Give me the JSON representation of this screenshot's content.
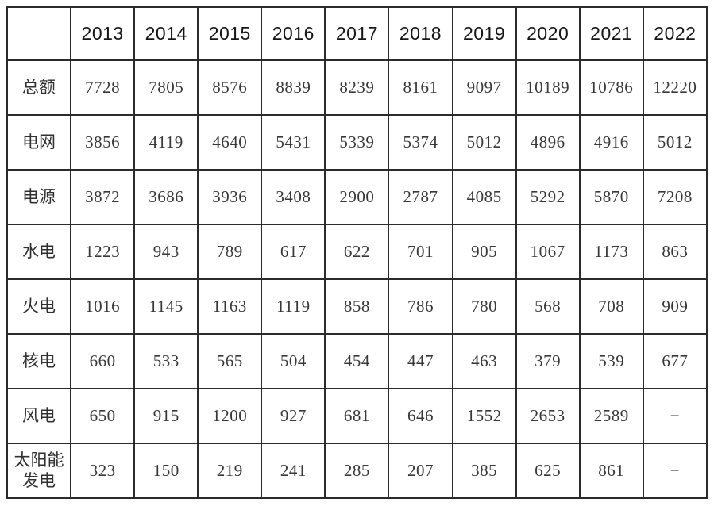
{
  "accent_colors": {
    "border": "#2b2b2b",
    "header_text": "#161616",
    "body_text": "#383838",
    "background": "#ffffff"
  },
  "table": {
    "corner_label": "",
    "columns": [
      "2013",
      "2014",
      "2015",
      "2016",
      "2017",
      "2018",
      "2019",
      "2020",
      "2021",
      "2022"
    ],
    "rows": [
      {
        "label": "总额",
        "values": [
          "7728",
          "7805",
          "8576",
          "8839",
          "8239",
          "8161",
          "9097",
          "10189",
          "10786",
          "12220"
        ]
      },
      {
        "label": "电网",
        "values": [
          "3856",
          "4119",
          "4640",
          "5431",
          "5339",
          "5374",
          "5012",
          "4896",
          "4916",
          "5012"
        ]
      },
      {
        "label": "电源",
        "values": [
          "3872",
          "3686",
          "3936",
          "3408",
          "2900",
          "2787",
          "4085",
          "5292",
          "5870",
          "7208"
        ]
      },
      {
        "label": "水电",
        "values": [
          "1223",
          "943",
          "789",
          "617",
          "622",
          "701",
          "905",
          "1067",
          "1173",
          "863"
        ]
      },
      {
        "label": "火电",
        "values": [
          "1016",
          "1145",
          "1163",
          "1119",
          "858",
          "786",
          "780",
          "568",
          "708",
          "909"
        ]
      },
      {
        "label": "核电",
        "values": [
          "660",
          "533",
          "565",
          "504",
          "454",
          "447",
          "463",
          "379",
          "539",
          "677"
        ]
      },
      {
        "label": "风电",
        "values": [
          "650",
          "915",
          "1200",
          "927",
          "681",
          "646",
          "1552",
          "2653",
          "2589",
          "−"
        ]
      },
      {
        "label": "太阳能发电",
        "values": [
          "323",
          "150",
          "219",
          "241",
          "285",
          "207",
          "385",
          "625",
          "861",
          "−"
        ]
      }
    ]
  },
  "chart_data": {
    "type": "table",
    "title": "",
    "categories": [
      "2013",
      "2014",
      "2015",
      "2016",
      "2017",
      "2018",
      "2019",
      "2020",
      "2021",
      "2022"
    ],
    "series": [
      {
        "name": "总额",
        "values": [
          7728,
          7805,
          8576,
          8839,
          8239,
          8161,
          9097,
          10189,
          10786,
          12220
        ]
      },
      {
        "name": "电网",
        "values": [
          3856,
          4119,
          4640,
          5431,
          5339,
          5374,
          5012,
          4896,
          4916,
          5012
        ]
      },
      {
        "name": "电源",
        "values": [
          3872,
          3686,
          3936,
          3408,
          2900,
          2787,
          4085,
          5292,
          5870,
          7208
        ]
      },
      {
        "name": "水电",
        "values": [
          1223,
          943,
          789,
          617,
          622,
          701,
          905,
          1067,
          1173,
          863
        ]
      },
      {
        "name": "火电",
        "values": [
          1016,
          1145,
          1163,
          1119,
          858,
          786,
          780,
          568,
          708,
          909
        ]
      },
      {
        "name": "核电",
        "values": [
          660,
          533,
          565,
          504,
          454,
          447,
          463,
          379,
          539,
          677
        ]
      },
      {
        "name": "风电",
        "values": [
          650,
          915,
          1200,
          927,
          681,
          646,
          1552,
          2653,
          2589,
          null
        ]
      },
      {
        "name": "太阳能发电",
        "values": [
          323,
          150,
          219,
          241,
          285,
          207,
          385,
          625,
          861,
          null
        ]
      }
    ],
    "missing_value_symbol": "−",
    "legend_position": "none",
    "grid": true
  }
}
